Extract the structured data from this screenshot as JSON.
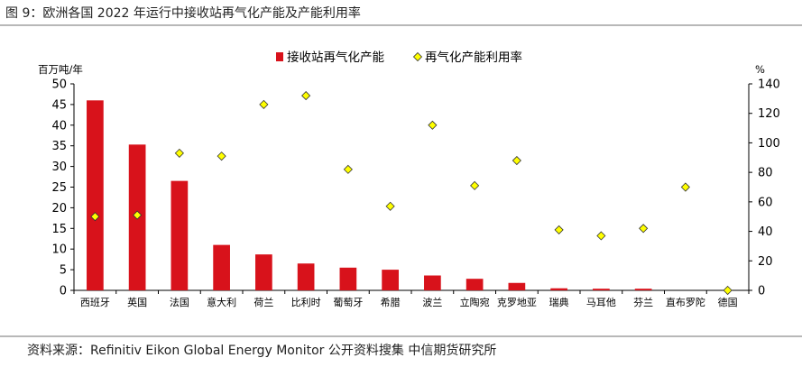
{
  "figure": {
    "title": "图 9：欧洲各国 2022 年运行中接收站再气化产能及产能利用率",
    "source": "资料来源：Refinitiv Eikon  Global Energy Monitor  公开资料搜集 中信期货研究所"
  },
  "chart_data": {
    "type": "bar",
    "categories": [
      "西班牙",
      "英国",
      "法国",
      "意大利",
      "荷兰",
      "比利时",
      "葡萄牙",
      "希腊",
      "波兰",
      "立陶宛",
      "克罗地亚",
      "瑞典",
      "马耳他",
      "芬兰",
      "直布罗陀",
      "德国"
    ],
    "series": [
      {
        "name": "接收站再气化产能",
        "type": "bar",
        "axis": "left",
        "color": "#d8121b",
        "values": [
          46.0,
          35.3,
          26.5,
          11.0,
          8.7,
          6.5,
          5.5,
          5.0,
          3.6,
          2.8,
          1.8,
          0.5,
          0.4,
          0.4,
          0.0,
          0.0
        ]
      },
      {
        "name": "再气化产能利用率",
        "type": "scatter",
        "axis": "right",
        "color": "#ffff00",
        "marker": "diamond",
        "values": [
          50,
          51,
          93,
          91,
          126,
          132,
          82,
          57,
          112,
          71,
          88,
          41,
          37,
          42,
          70,
          0
        ]
      }
    ],
    "y_left": {
      "label": "百万吨/年",
      "ylim": [
        0,
        50
      ],
      "ticks": [
        0,
        5,
        10,
        15,
        20,
        25,
        30,
        35,
        40,
        45,
        50
      ]
    },
    "y_right": {
      "label": "%",
      "ylim": [
        0,
        140
      ],
      "ticks": [
        0,
        20,
        40,
        60,
        80,
        100,
        120,
        140
      ]
    },
    "legend_position": "top-center",
    "grid": false
  }
}
